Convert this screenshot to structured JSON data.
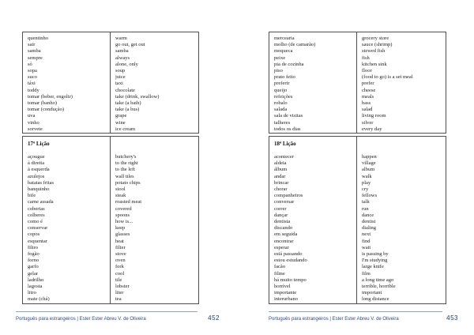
{
  "pages": [
    {
      "footer_text": "Português para estrangeiros | Ester Ester Abreu V. de Oliveira",
      "page_number": "452",
      "sections": [
        {
          "header": "",
          "rows": [
            {
              "pt": "quentinho",
              "en": "warm"
            },
            {
              "pt": "sair",
              "en": "go out, get out"
            },
            {
              "pt": "samba",
              "en": "samba"
            },
            {
              "pt": "sempre",
              "en": "always"
            },
            {
              "pt": "só",
              "en": "alone, only"
            },
            {
              "pt": "sopa",
              "en": "soup"
            },
            {
              "pt": "suco",
              "en": "juice"
            },
            {
              "pt": "táxi",
              "en": "taxi"
            },
            {
              "pt": "toddy",
              "en": "chocolate"
            },
            {
              "pt": "tomar (beber, engolir)",
              "en": "take (drink, swallow)"
            },
            {
              "pt": "tomar (banho)",
              "en": "take (a bath)"
            },
            {
              "pt": "tomar (condução)",
              "en": "take (a bus)"
            },
            {
              "pt": "uva",
              "en": "grape"
            },
            {
              "pt": "vinho",
              "en": "wine"
            },
            {
              "pt": "sorvete",
              "en": "ice cream"
            }
          ]
        },
        {
          "header": "17ª Lição",
          "rows": [
            {
              "pt": "açougue",
              "en": "butchery's"
            },
            {
              "pt": "à direita",
              "en": "to the right"
            },
            {
              "pt": "à esquerda",
              "en": "to the left"
            },
            {
              "pt": "azulejos",
              "en": "wall tiles"
            },
            {
              "pt": "batatas fritas",
              "en": "potato chips"
            },
            {
              "pt": "banquinho",
              "en": "stool"
            },
            {
              "pt": "bife",
              "en": "steak"
            },
            {
              "pt": "carne assada",
              "en": "roasted meat"
            },
            {
              "pt": "cobertas",
              "en": "covered"
            },
            {
              "pt": "colheres",
              "en": "spoons"
            },
            {
              "pt": "como é",
              "en": "how is..."
            },
            {
              "pt": "conservar",
              "en": "keep"
            },
            {
              "pt": "copos",
              "en": "glasses"
            },
            {
              "pt": "esquentar",
              "en": "heat"
            },
            {
              "pt": "filtro",
              "en": "filter"
            },
            {
              "pt": "fogão",
              "en": "stove"
            },
            {
              "pt": "forno",
              "en": "oven"
            },
            {
              "pt": "garfo",
              "en": "fork"
            },
            {
              "pt": "gelar",
              "en": "cool"
            },
            {
              "pt": "ladrilho",
              "en": "tile"
            },
            {
              "pt": "lagosta",
              "en": "lobster"
            },
            {
              "pt": "litro",
              "en": "liter"
            },
            {
              "pt": "mate (chá)",
              "en": "tea"
            }
          ]
        }
      ]
    },
    {
      "footer_text": "Português para estrangeiros | Ester Ester Abreu V. de Oliveira",
      "page_number": "453",
      "sections": [
        {
          "header": "",
          "rows": [
            {
              "pt": "mercearia",
              "en": "grocery store"
            },
            {
              "pt": "molho (de camarão)",
              "en": "sauce (shrimp)"
            },
            {
              "pt": "moqueca",
              "en": "stewed fish"
            },
            {
              "pt": "peixe",
              "en": "fish"
            },
            {
              "pt": "pia de cozinha",
              "en": "kitchen sink"
            },
            {
              "pt": "piso",
              "en": "floor"
            },
            {
              "pt": "prato feito",
              "en": "(food to go) is a set meal"
            },
            {
              "pt": "preferir",
              "en": "prefer"
            },
            {
              "pt": "queijo",
              "en": "cheese"
            },
            {
              "pt": "refeições",
              "en": "meals"
            },
            {
              "pt": "robalo",
              "en": "bass"
            },
            {
              "pt": "salada",
              "en": "salad"
            },
            {
              "pt": "sala de visitas",
              "en": "living room"
            },
            {
              "pt": "talheres",
              "en": "silver"
            },
            {
              "pt": "todos os dias",
              "en": "every day"
            }
          ]
        },
        {
          "header": "18ª Lição",
          "rows": [
            {
              "pt": "acontecer",
              "en": "happen"
            },
            {
              "pt": "aldeia",
              "en": "village"
            },
            {
              "pt": "álbum",
              "en": "album"
            },
            {
              "pt": "andar",
              "en": "walk"
            },
            {
              "pt": "brincar",
              "en": "play"
            },
            {
              "pt": "chorar",
              "en": "cry"
            },
            {
              "pt": "companheiros",
              "en": "fellows"
            },
            {
              "pt": "conversar",
              "en": "talk"
            },
            {
              "pt": "correr",
              "en": "run"
            },
            {
              "pt": "dançar",
              "en": "dance"
            },
            {
              "pt": "dentista",
              "en": "dentist"
            },
            {
              "pt": "discando",
              "en": "dialing"
            },
            {
              "pt": "em seguida",
              "en": "next"
            },
            {
              "pt": "encontrar",
              "en": "find"
            },
            {
              "pt": "esperar",
              "en": "wait"
            },
            {
              "pt": "está passando",
              "en": "is passing by"
            },
            {
              "pt": "estou estudando",
              "en": "I'm studying"
            },
            {
              "pt": "facão",
              "en": "large knife"
            },
            {
              "pt": "filme",
              "en": "film"
            },
            {
              "pt": "há muito tempo",
              "en": "a long time ago"
            },
            {
              "pt": "horrível",
              "en": "terrible, horrible"
            },
            {
              "pt": "importante",
              "en": "important"
            },
            {
              "pt": "interurbano",
              "en": "long distance"
            }
          ]
        }
      ]
    }
  ]
}
